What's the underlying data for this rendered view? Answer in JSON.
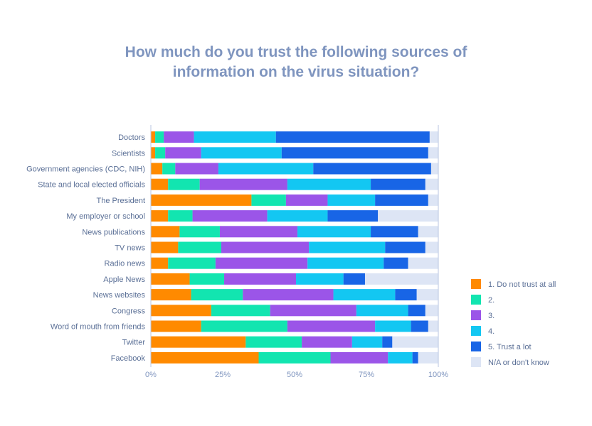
{
  "chart_data": {
    "type": "bar",
    "orientation": "horizontal",
    "stacked": true,
    "title_lines": [
      "How much do you trust the following sources of",
      "information on the virus situation?"
    ],
    "categories": [
      "Doctors",
      "Scientists",
      "Government agencies (CDC, NIH)",
      "State and local elected officials",
      "The President",
      "My employer or school",
      "News publications",
      "TV news",
      "Radio news",
      "Apple News",
      "News websites",
      "Congress",
      "Word of mouth from friends",
      "Twitter",
      "Facebook"
    ],
    "series": [
      {
        "name": "1. Do not trust at all",
        "color": "#ff8a00",
        "values": [
          1.5,
          1.5,
          4,
          6,
          35,
          6,
          10,
          9.5,
          6,
          13.5,
          14,
          21,
          17.5,
          33,
          37.5
        ]
      },
      {
        "name": "2.",
        "color": "#12e5b0",
        "values": [
          3,
          3.5,
          4.5,
          11,
          12,
          8.5,
          14,
          15,
          16.5,
          12,
          18,
          20.5,
          30,
          19.5,
          25
        ]
      },
      {
        "name": "3.",
        "color": "#9b55e8",
        "values": [
          10.5,
          12.5,
          15,
          30.5,
          14.5,
          26,
          27,
          30.5,
          32,
          25,
          31.5,
          30,
          30.5,
          17.5,
          20
        ]
      },
      {
        "name": "4.",
        "color": "#13c7f2",
        "values": [
          28.5,
          28,
          33,
          29,
          16.5,
          21,
          25.5,
          26.5,
          26.5,
          16.5,
          21.5,
          18,
          12.5,
          10.5,
          8.5
        ]
      },
      {
        "name": "5. Trust a lot",
        "color": "#1865e6",
        "values": [
          53.5,
          51,
          41,
          19,
          18.5,
          17.5,
          16.5,
          14,
          8.5,
          7.5,
          7.5,
          6,
          6,
          3.5,
          2
        ]
      },
      {
        "name": "N/A or don't know",
        "color": "#dde5f5",
        "values": [
          3,
          3.5,
          2.5,
          4.5,
          3.5,
          21,
          7,
          4.5,
          10.5,
          25.5,
          7.5,
          4.5,
          3.5,
          16,
          7
        ]
      }
    ],
    "xlim": [
      0,
      100
    ],
    "xticks": [
      "0%",
      "25%",
      "50%",
      "75%",
      "100%"
    ],
    "xlabel": "",
    "ylabel": "",
    "legend_position": "right"
  }
}
